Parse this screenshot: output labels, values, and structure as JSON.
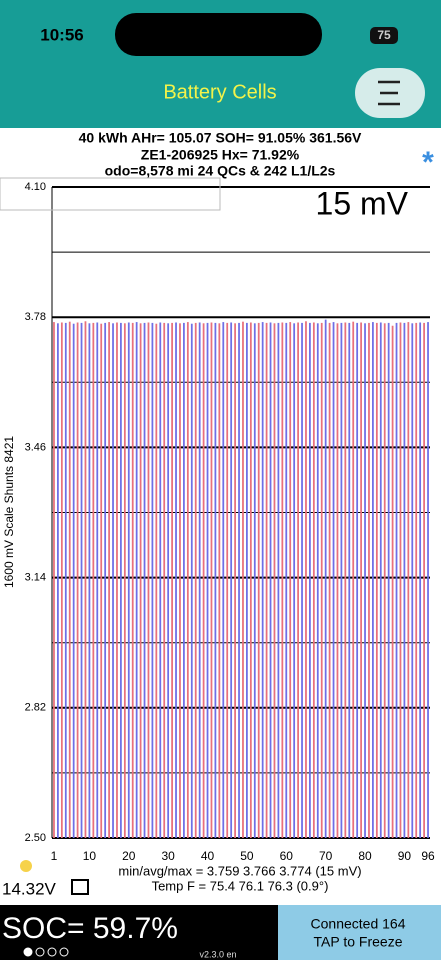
{
  "status_bar": {
    "time": "10:56",
    "battery": "75"
  },
  "header": {
    "title": "Battery Cells"
  },
  "info": {
    "line1": "40 kWh  AHr= 105.07  SOH= 91.05%  361.56V",
    "line2": "ZE1-206925   Hx= 71.92%",
    "line3": "odo=8,578 mi 24 QCs & 242 L1/L2s",
    "marker": "*"
  },
  "chart_data": {
    "type": "bar",
    "ylabel": "1600 mV Scale   Shunts 8421",
    "annotation": "15 mV",
    "x": [
      1,
      2,
      3,
      4,
      5,
      6,
      7,
      8,
      9,
      10,
      11,
      12,
      13,
      14,
      15,
      16,
      17,
      18,
      19,
      20,
      21,
      22,
      23,
      24,
      25,
      26,
      27,
      28,
      29,
      30,
      31,
      32,
      33,
      34,
      35,
      36,
      37,
      38,
      39,
      40,
      41,
      42,
      43,
      44,
      45,
      46,
      47,
      48,
      49,
      50,
      51,
      52,
      53,
      54,
      55,
      56,
      57,
      58,
      59,
      60,
      61,
      62,
      63,
      64,
      65,
      66,
      67,
      68,
      69,
      70,
      71,
      72,
      73,
      74,
      75,
      76,
      77,
      78,
      79,
      80,
      81,
      82,
      83,
      84,
      85,
      86,
      87,
      88,
      89,
      90,
      91,
      92,
      93,
      94,
      95,
      96
    ],
    "values": [
      3.768,
      3.765,
      3.767,
      3.766,
      3.769,
      3.764,
      3.767,
      3.766,
      3.77,
      3.765,
      3.766,
      3.767,
      3.764,
      3.766,
      3.768,
      3.765,
      3.767,
      3.766,
      3.765,
      3.767,
      3.766,
      3.768,
      3.765,
      3.766,
      3.767,
      3.766,
      3.764,
      3.767,
      3.766,
      3.765,
      3.766,
      3.767,
      3.765,
      3.766,
      3.768,
      3.764,
      3.766,
      3.767,
      3.765,
      3.766,
      3.767,
      3.766,
      3.765,
      3.768,
      3.766,
      3.767,
      3.765,
      3.766,
      3.769,
      3.766,
      3.767,
      3.765,
      3.766,
      3.768,
      3.766,
      3.767,
      3.765,
      3.766,
      3.767,
      3.766,
      3.768,
      3.765,
      3.767,
      3.766,
      3.77,
      3.766,
      3.767,
      3.765,
      3.766,
      3.774,
      3.766,
      3.768,
      3.765,
      3.766,
      3.767,
      3.766,
      3.769,
      3.766,
      3.767,
      3.765,
      3.766,
      3.768,
      3.766,
      3.767,
      3.765,
      3.766,
      3.759,
      3.766,
      3.767,
      3.766,
      3.768,
      3.765,
      3.766,
      3.767,
      3.766,
      3.768
    ],
    "colors": [
      "#e8707c",
      "#6e6ee6"
    ],
    "xlim": [
      0.5,
      96.5
    ],
    "xticks": [
      1,
      10,
      20,
      30,
      40,
      50,
      60,
      70,
      80,
      90,
      96
    ],
    "ylim": [
      2.5,
      4.1
    ],
    "yticks": [
      {
        "value": 4.1,
        "label": "4.10"
      },
      3.78,
      3.46,
      3.14,
      2.82,
      {
        "value": 2.5,
        "label": "2.50"
      }
    ],
    "minor_yticks": [
      3.94,
      3.62,
      3.3,
      2.98,
      2.66
    ],
    "grid": true
  },
  "footer": {
    "stats": "min/avg/max = 3.759 3.766 3.774 (15 mV)",
    "temp": "Temp F = 75.4  76.1  76.3  (0.9°)",
    "voltage": "14.32V",
    "soc": "SOC= 59.7%",
    "connection": "Connected 164",
    "tap": "TAP to Freeze",
    "version": "v2.3.0 en"
  }
}
